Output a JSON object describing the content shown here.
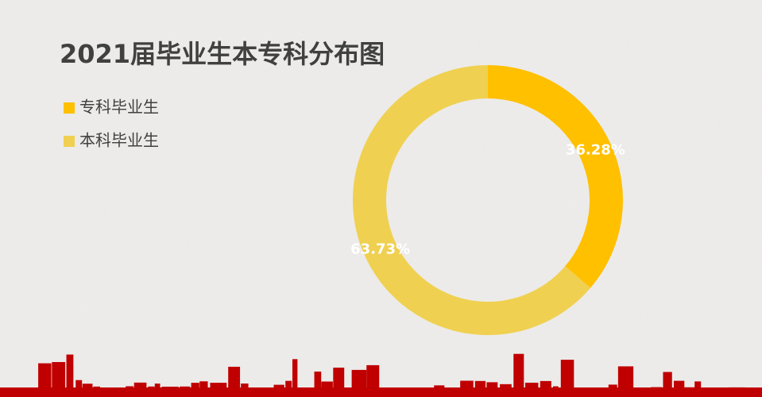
{
  "chart_data": {
    "type": "doughnut",
    "title": "2021届毕业生本专科分布图",
    "categories": [
      "专科毕业生",
      "本科毕业生"
    ],
    "values": [
      36.28,
      63.73
    ],
    "value_labels": [
      "36.28%",
      "63.73%"
    ],
    "colors": [
      "#ffc000",
      "#f0d050"
    ],
    "legend": "top-left"
  }
}
